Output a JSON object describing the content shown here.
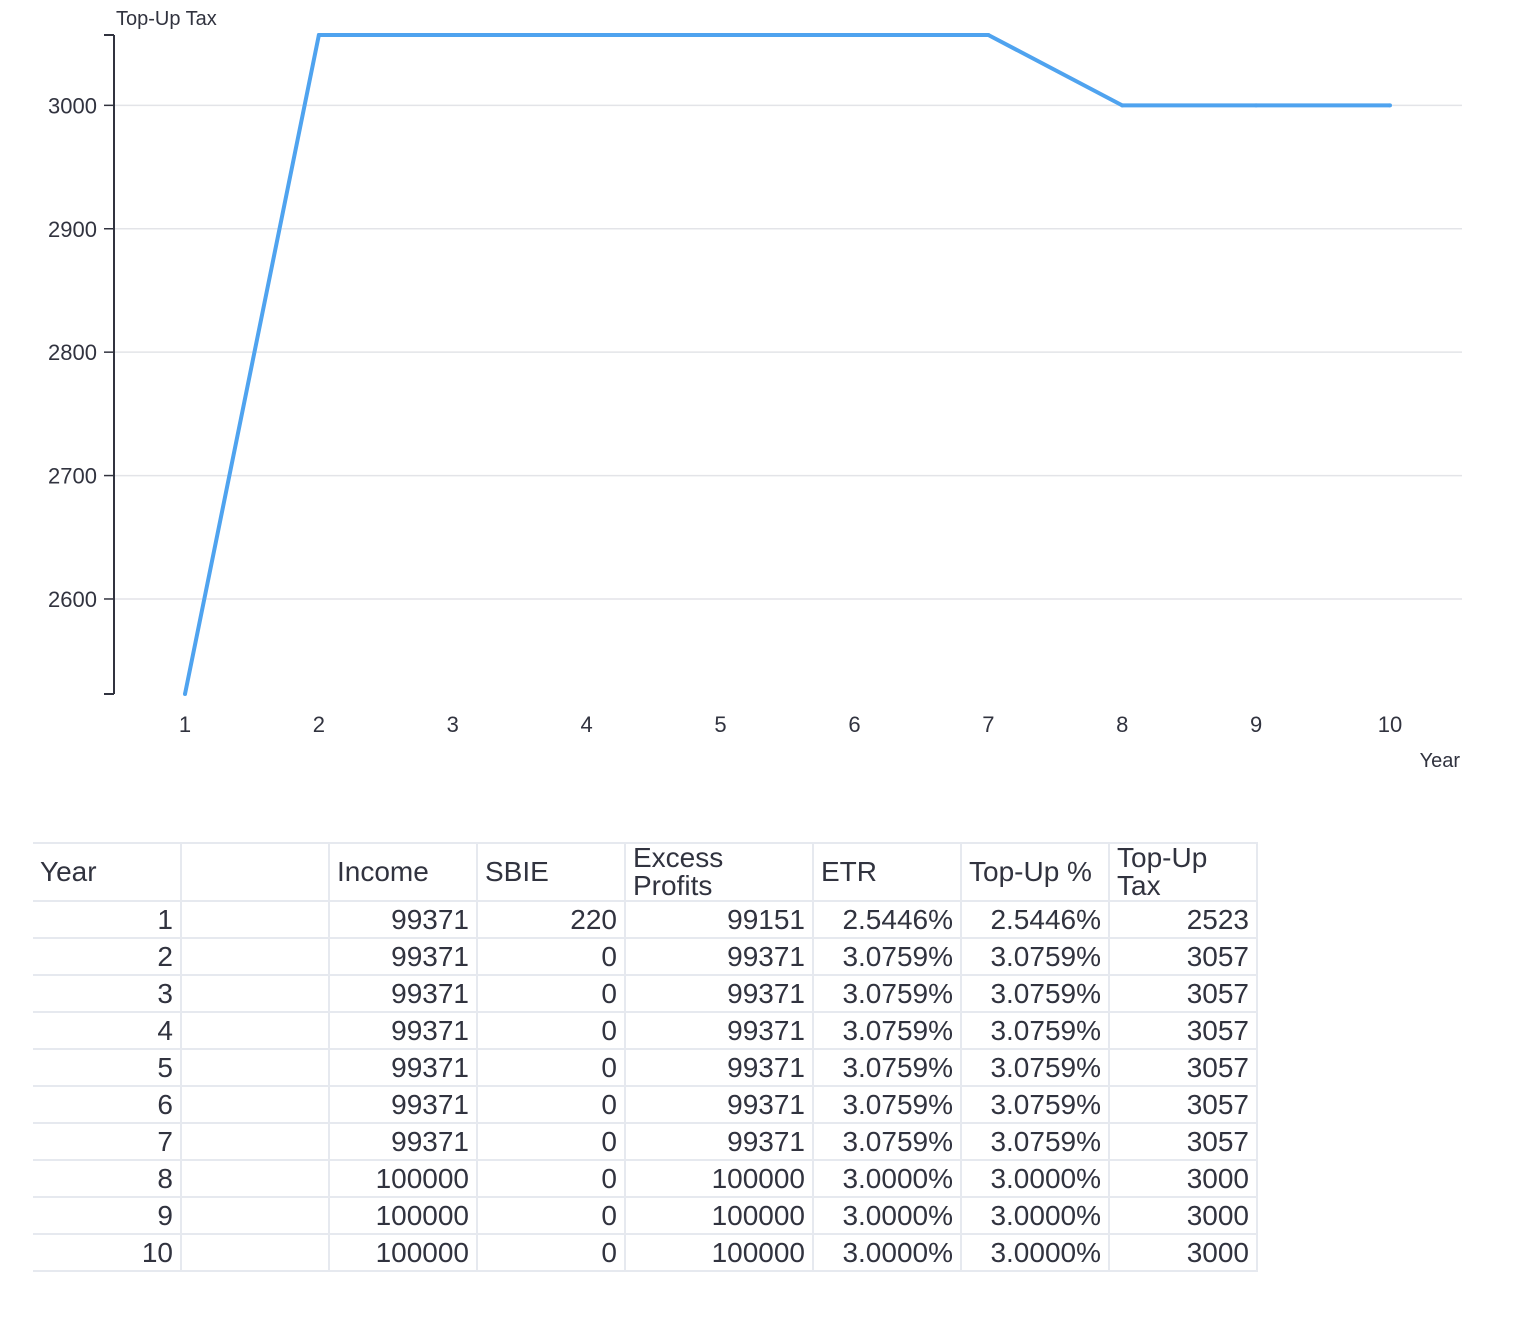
{
  "chart_data": {
    "type": "line",
    "ylabel": "Top-Up Tax",
    "xlabel": "Year",
    "x": [
      1,
      2,
      3,
      4,
      5,
      6,
      7,
      8,
      9,
      10
    ],
    "series": [
      {
        "values": [
          2523,
          3057,
          3057,
          3057,
          3057,
          3057,
          3057,
          3000,
          3000,
          3000
        ]
      }
    ],
    "xticks": [
      "1",
      "2",
      "3",
      "4",
      "5",
      "6",
      "7",
      "8",
      "9",
      "10"
    ],
    "yticks": [
      2600,
      2700,
      2800,
      2900,
      3000
    ],
    "ylim": [
      2523,
      3057
    ],
    "grid": "horizontal",
    "colors": {
      "line": "#4fa3ef",
      "grid": "#e3e4e8",
      "axis": "#31333f"
    }
  },
  "table": {
    "headers": [
      "Year",
      "",
      "Income",
      "SBIE",
      "Excess Profits",
      "ETR",
      "Top-Up %",
      "Top-Up Tax"
    ],
    "rows": [
      [
        "1",
        "",
        "99371",
        "220",
        "99151",
        "2.5446%",
        "2.5446%",
        "2523"
      ],
      [
        "2",
        "",
        "99371",
        "0",
        "99371",
        "3.0759%",
        "3.0759%",
        "3057"
      ],
      [
        "3",
        "",
        "99371",
        "0",
        "99371",
        "3.0759%",
        "3.0759%",
        "3057"
      ],
      [
        "4",
        "",
        "99371",
        "0",
        "99371",
        "3.0759%",
        "3.0759%",
        "3057"
      ],
      [
        "5",
        "",
        "99371",
        "0",
        "99371",
        "3.0759%",
        "3.0759%",
        "3057"
      ],
      [
        "6",
        "",
        "99371",
        "0",
        "99371",
        "3.0759%",
        "3.0759%",
        "3057"
      ],
      [
        "7",
        "",
        "99371",
        "0",
        "99371",
        "3.0759%",
        "3.0759%",
        "3057"
      ],
      [
        "8",
        "",
        "100000",
        "0",
        "100000",
        "3.0000%",
        "3.0000%",
        "3000"
      ],
      [
        "9",
        "",
        "100000",
        "0",
        "100000",
        "3.0000%",
        "3.0000%",
        "3000"
      ],
      [
        "10",
        "",
        "100000",
        "0",
        "100000",
        "3.0000%",
        "3.0000%",
        "3000"
      ]
    ]
  }
}
